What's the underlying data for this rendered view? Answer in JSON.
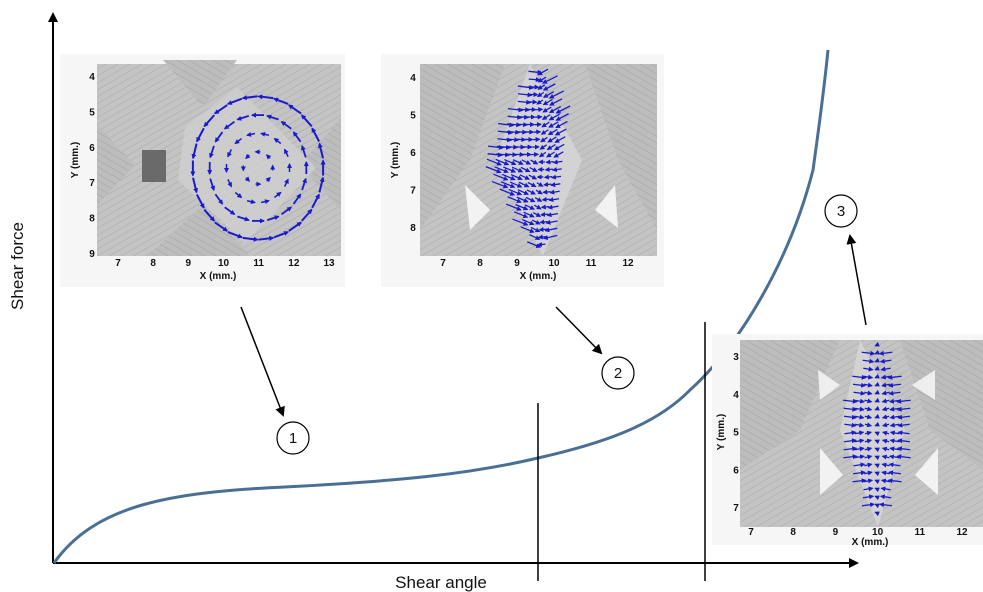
{
  "axes": {
    "x_label": "Shear angle",
    "y_label": "Shear force"
  },
  "stages": [
    {
      "number": "1"
    },
    {
      "number": "2"
    },
    {
      "number": "3"
    }
  ],
  "insets": [
    {
      "id": "inset-1",
      "pattern": "rotation",
      "x_axis_label": "X (mm.)",
      "y_axis_label": "Y (mm.)",
      "x_ticks": [
        "7",
        "8",
        "9",
        "10",
        "11",
        "12",
        "13"
      ],
      "y_ticks": [
        "4",
        "5",
        "6",
        "7",
        "8",
        "9"
      ]
    },
    {
      "id": "inset-2",
      "pattern": "shear-lobes",
      "x_axis_label": "X (mm.)",
      "y_axis_label": "Y (mm.)",
      "x_ticks": [
        "7",
        "8",
        "9",
        "10",
        "11",
        "12"
      ],
      "y_ticks": [
        "4",
        "5",
        "6",
        "7",
        "8"
      ]
    },
    {
      "id": "inset-3",
      "pattern": "lateral-compaction",
      "x_axis_label": "X (mm.)",
      "y_axis_label": "Y (mm.)",
      "x_ticks": [
        "7",
        "8",
        "9",
        "10",
        "11",
        "12"
      ],
      "y_ticks": [
        "3",
        "4",
        "5",
        "6",
        "7"
      ]
    }
  ],
  "colors": {
    "curve": "#4a6f95",
    "vectors": "#1a1acc",
    "axes": "#000000"
  }
}
